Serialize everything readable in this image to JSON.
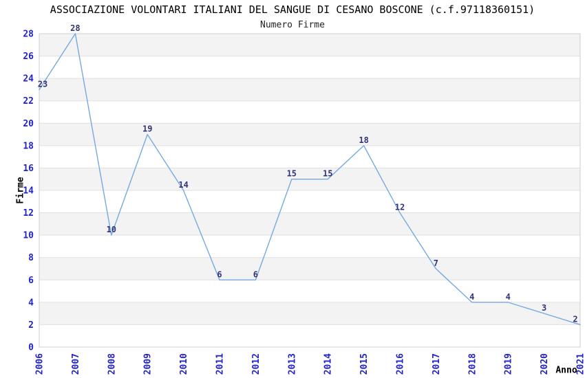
{
  "chart_data": {
    "type": "line",
    "title": "ASSOCIAZIONE VOLONTARI ITALIANI DEL SANGUE DI CESANO BOSCONE (c.f.97118360151)",
    "subtitle": "Numero Firme",
    "xlabel": "Anno",
    "ylabel": "Firme",
    "categories": [
      "2006",
      "2007",
      "2008",
      "2009",
      "2010",
      "2011",
      "2012",
      "2013",
      "2014",
      "2015",
      "2016",
      "2017",
      "2018",
      "2019",
      "2020",
      "2021"
    ],
    "values": [
      23,
      28,
      10,
      19,
      14,
      6,
      6,
      15,
      15,
      18,
      12,
      7,
      4,
      4,
      3,
      2
    ],
    "ylim": [
      0,
      28
    ],
    "ytick_step": 2,
    "grid": "horizontal-only",
    "legend_position": "none",
    "point_markers": false,
    "data_labels_shown": true,
    "x_tick_rotation": "vertical",
    "colors": {
      "line": "#74a9e0",
      "tick_label": "#2222cc",
      "data_label": "#333377",
      "band_fill": "#f3f3f3",
      "gridline": "#e0e0e0",
      "plot_border": "#cfcfcf",
      "title": "#000000",
      "subtitle": "#222222",
      "axis_title": "#000000",
      "background": "#ffffff"
    }
  }
}
